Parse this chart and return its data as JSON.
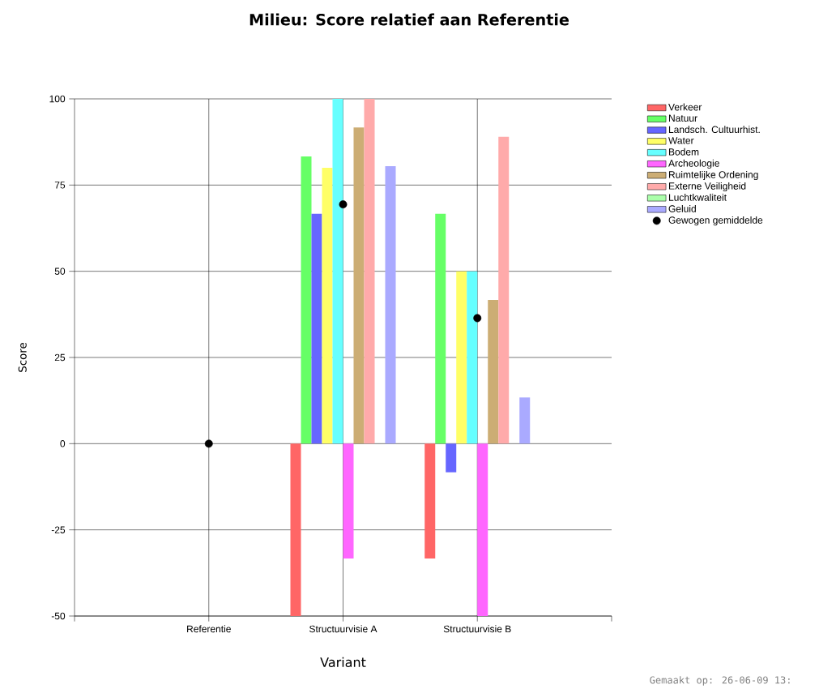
{
  "chart_data": {
    "type": "bar",
    "title": "Milieu: Score relatief aan Referentie",
    "xlabel": "Variant",
    "ylabel": "Score",
    "categories": [
      "Referentie",
      "Structuurvisie A",
      "Structuurvisie B"
    ],
    "series": [
      {
        "name": "Verkeer",
        "color": "#ff6666",
        "values": [
          0,
          -50,
          -33.3
        ]
      },
      {
        "name": "Natuur",
        "color": "#66ff66",
        "values": [
          0,
          83.3,
          66.7
        ]
      },
      {
        "name": "Landsch. Cultuurhist.",
        "color": "#6666ff",
        "values": [
          0,
          66.7,
          -8.3
        ]
      },
      {
        "name": "Water",
        "color": "#ffff66",
        "values": [
          0,
          80,
          50
        ]
      },
      {
        "name": "Bodem",
        "color": "#66ffff",
        "values": [
          0,
          100,
          50
        ]
      },
      {
        "name": "Archeologie",
        "color": "#ff66ff",
        "values": [
          0,
          -33.3,
          -50
        ]
      },
      {
        "name": "Ruimtelijke Ordening",
        "color": "#ccad74",
        "values": [
          0,
          91.7,
          41.7
        ]
      },
      {
        "name": "Externe Veiligheid",
        "color": "#ffaaaa",
        "values": [
          0,
          100,
          89
        ]
      },
      {
        "name": "Luchtkwaliteit",
        "color": "#aaffaa",
        "values": [
          0,
          0,
          0
        ]
      },
      {
        "name": "Geluid",
        "color": "#aaaaff",
        "values": [
          0,
          80.5,
          13.4
        ]
      },
      {
        "name": "Gewogen gemiddelde",
        "type": "scatter",
        "marker": "circle",
        "color": "#000000",
        "x": [
          "Referentie",
          "Structuurvisie A",
          "Structuurvisie B"
        ],
        "values": [
          0,
          69.4,
          36.4
        ]
      }
    ],
    "ylim": [
      -50,
      100
    ],
    "yticks": [
      -50,
      -25,
      0,
      25,
      50,
      75,
      100
    ],
    "grid": true,
    "legend": "top right",
    "annotations": [
      "Gemaakt op: 26-06-09 13:"
    ]
  }
}
